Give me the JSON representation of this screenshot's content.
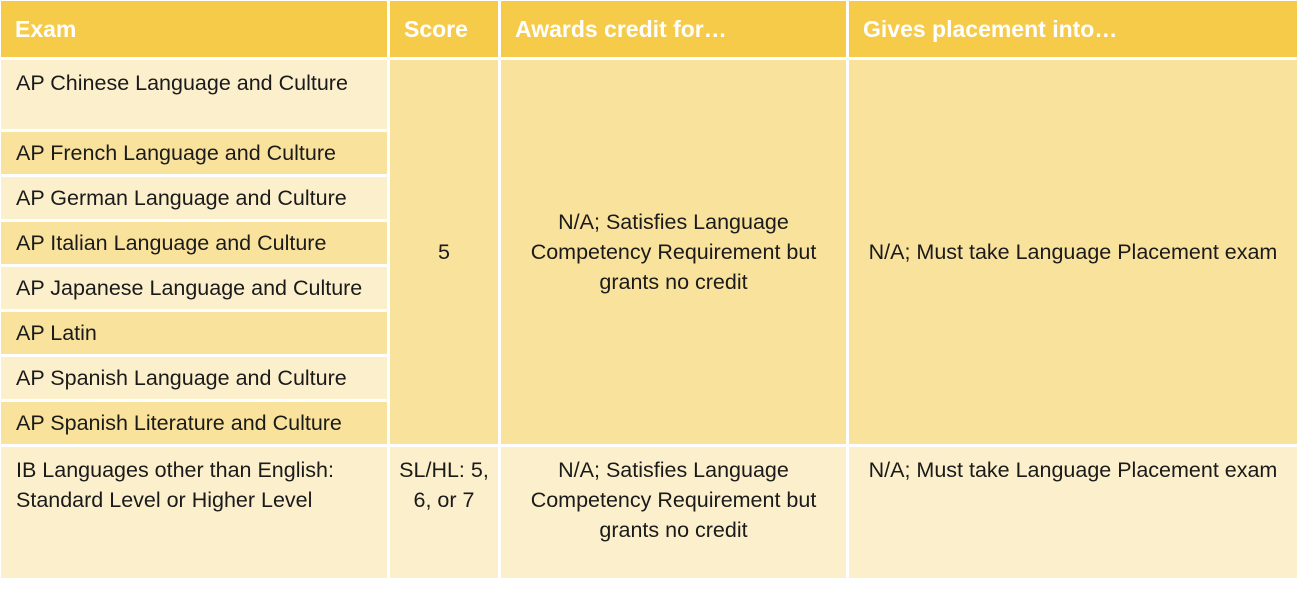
{
  "headers": {
    "exam": "Exam",
    "score": "Score",
    "awards": "Awards credit for…",
    "placement": "Gives placement into…"
  },
  "ap_exams": [
    "AP Chinese Language and Culture",
    "AP French Language and Culture",
    "AP German Language and Culture",
    "AP Italian Language and Culture",
    "AP Japanese Language and Culture",
    "AP Latin",
    "AP Spanish Language and Culture",
    "AP Spanish Literature and Culture"
  ],
  "ap_group": {
    "score": "5",
    "awards": "N/A; Satisfies Language Competency Requirement but grants no credit",
    "placement": "N/A; Must take Language Placement exam"
  },
  "ib_row": {
    "exam": "IB Languages other than English: Standard Level or Higher Level",
    "score": "SL/HL: 5, 6, or 7",
    "awards": "N/A; Satisfies Language Competency Requirement but grants no credit",
    "placement": "N/A; Must take Language Placement exam"
  },
  "colors": {
    "header": "#f6cb4a",
    "band_dark": "#f9e29c",
    "band_light": "#fcefcc"
  }
}
